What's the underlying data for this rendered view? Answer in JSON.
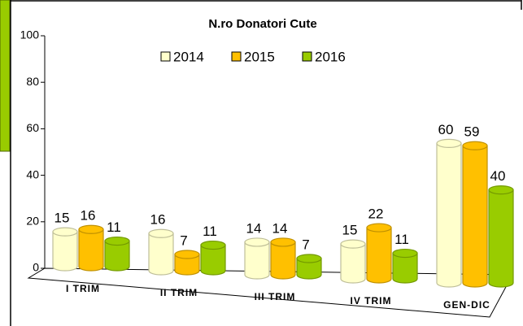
{
  "chart_data": {
    "type": "bar3d",
    "title": "N.ro Donatori Cute",
    "categories": [
      "I TRIM",
      "II TRIM",
      "III TRIM",
      "IV TRIM",
      "GEN-DIC"
    ],
    "series": [
      {
        "name": "2014",
        "color": "#ffffcc",
        "values": [
          15,
          16,
          14,
          15,
          60
        ]
      },
      {
        "name": "2015",
        "color": "#ffc000",
        "values": [
          16,
          7,
          14,
          22,
          59
        ]
      },
      {
        "name": "2016",
        "color": "#99cc00",
        "values": [
          11,
          11,
          7,
          11,
          40
        ]
      }
    ],
    "ylim": [
      0,
      100
    ],
    "yticks": [
      0,
      20,
      40,
      60,
      80,
      100
    ]
  }
}
